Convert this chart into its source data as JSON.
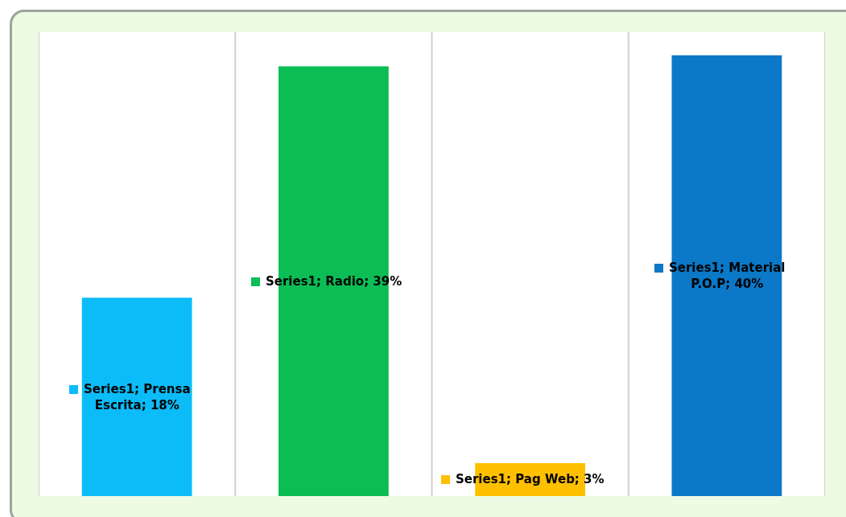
{
  "chart_data": {
    "type": "bar",
    "categories": [
      null,
      null,
      null,
      null
    ],
    "values": [
      18,
      39,
      3,
      40
    ],
    "colors": [
      "#0bbcf9",
      "#0bbd55",
      "#ffc000",
      "#0b78c8"
    ],
    "value_labels": [
      "Series1; Prensa Escrita; 18%",
      "Series1; Radio; 39%",
      "Series1; Pag Web; 3%",
      "Series1; Material P.O.P; 40%"
    ],
    "grid": "x"
  }
}
